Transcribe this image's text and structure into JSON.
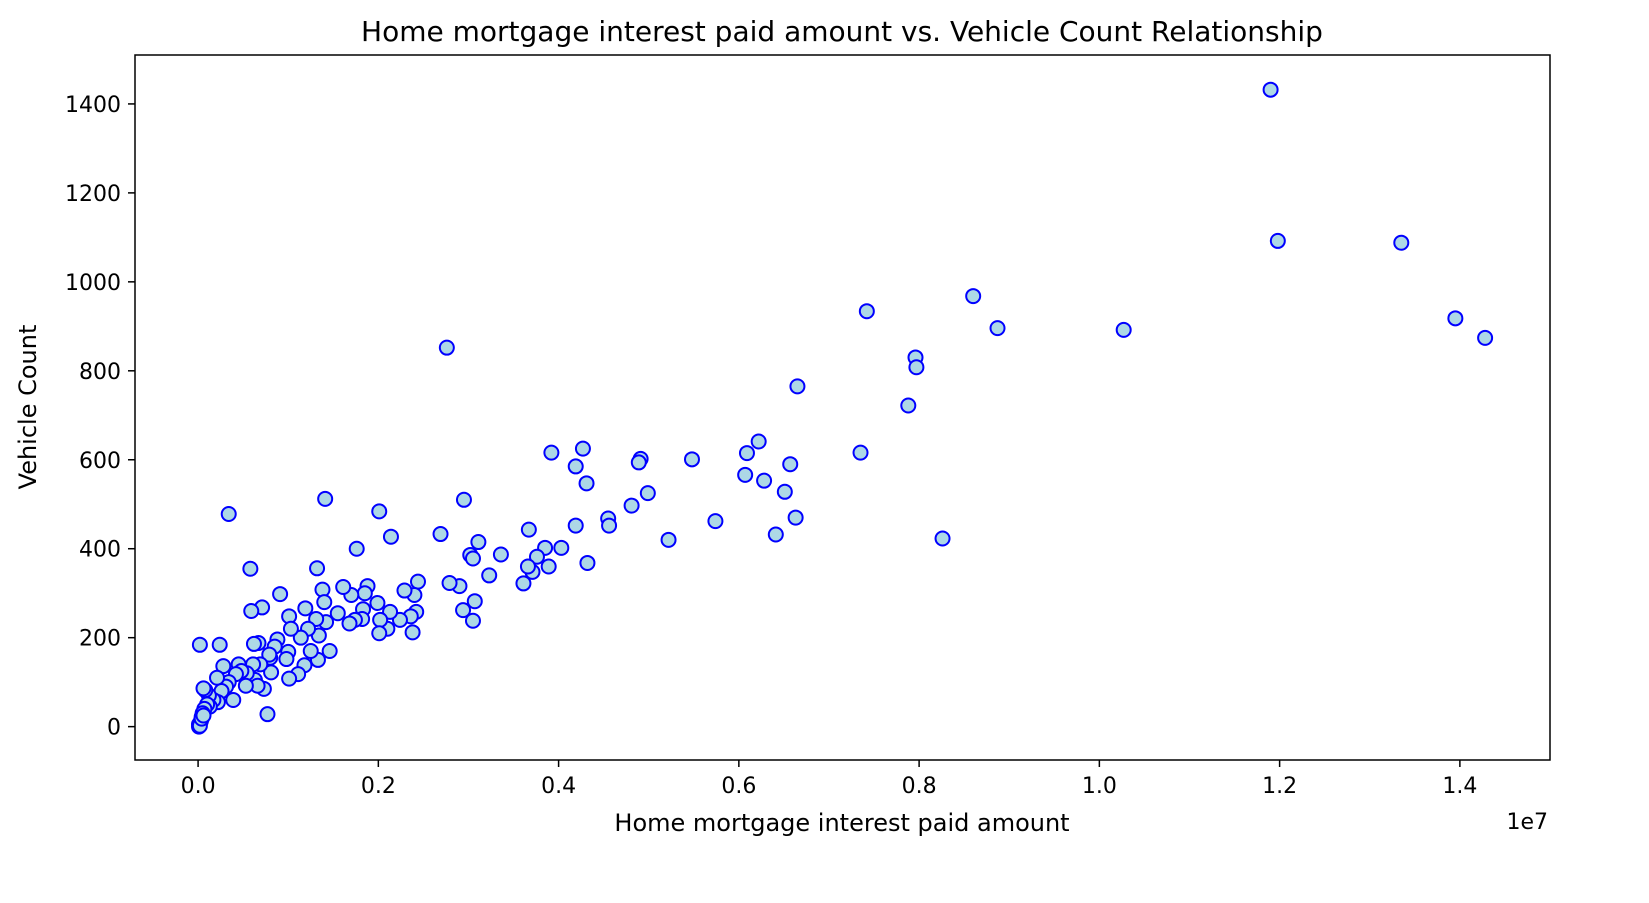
{
  "chart_data": {
    "type": "scatter",
    "title": "Home mortgage interest paid amount vs. Vehicle Count Relationship",
    "xlabel": "Home mortgage interest paid amount",
    "ylabel": "Vehicle Count",
    "x_offset_label": "1e7",
    "xlim": [
      -0.07,
      1.5
    ],
    "ylim": [
      -75,
      1510
    ],
    "x_unit_multiplier": 10000000,
    "x_ticks": [
      0.0,
      0.2,
      0.4,
      0.6,
      0.8,
      1.0,
      1.2,
      1.4
    ],
    "x_tick_labels": [
      "0.0",
      "0.2",
      "0.4",
      "0.6",
      "0.8",
      "1.0",
      "1.2",
      "1.4"
    ],
    "y_ticks": [
      0,
      200,
      400,
      600,
      800,
      1000,
      1200,
      1400
    ],
    "y_tick_labels": [
      "0",
      "200",
      "400",
      "600",
      "800",
      "1000",
      "1200",
      "1400"
    ],
    "grid": false,
    "legend": "none",
    "marker_face_color": "#add8e6",
    "marker_edge_color": "#0000ff",
    "points": [
      [
        1.19,
        1432
      ],
      [
        1.198,
        1092
      ],
      [
        1.335,
        1088
      ],
      [
        1.395,
        918
      ],
      [
        1.428,
        874
      ],
      [
        1.027,
        892
      ],
      [
        0.86,
        968
      ],
      [
        0.887,
        896
      ],
      [
        0.742,
        934
      ],
      [
        0.796,
        830
      ],
      [
        0.797,
        808
      ],
      [
        0.788,
        722
      ],
      [
        0.665,
        765
      ],
      [
        0.826,
        423
      ],
      [
        0.735,
        616
      ],
      [
        0.622,
        641
      ],
      [
        0.609,
        615
      ],
      [
        0.607,
        566
      ],
      [
        0.628,
        553
      ],
      [
        0.657,
        590
      ],
      [
        0.651,
        528
      ],
      [
        0.663,
        470
      ],
      [
        0.641,
        432
      ],
      [
        0.548,
        601
      ],
      [
        0.574,
        462
      ],
      [
        0.522,
        420
      ],
      [
        0.491,
        602
      ],
      [
        0.489,
        594
      ],
      [
        0.499,
        525
      ],
      [
        0.481,
        497
      ],
      [
        0.455,
        468
      ],
      [
        0.456,
        452
      ],
      [
        0.427,
        625
      ],
      [
        0.419,
        585
      ],
      [
        0.431,
        547
      ],
      [
        0.419,
        452
      ],
      [
        0.432,
        368
      ],
      [
        0.392,
        616
      ],
      [
        0.367,
        443
      ],
      [
        0.403,
        402
      ],
      [
        0.385,
        402
      ],
      [
        0.376,
        382
      ],
      [
        0.389,
        360
      ],
      [
        0.371,
        348
      ],
      [
        0.366,
        360
      ],
      [
        0.361,
        322
      ],
      [
        0.336,
        387
      ],
      [
        0.323,
        340
      ],
      [
        0.311,
        415
      ],
      [
        0.302,
        386
      ],
      [
        0.305,
        378
      ],
      [
        0.307,
        282
      ],
      [
        0.305,
        238
      ],
      [
        0.295,
        510
      ],
      [
        0.294,
        262
      ],
      [
        0.29,
        316
      ],
      [
        0.279,
        323
      ],
      [
        0.276,
        852
      ],
      [
        0.269,
        433
      ],
      [
        0.244,
        326
      ],
      [
        0.24,
        296
      ],
      [
        0.242,
        258
      ],
      [
        0.236,
        248
      ],
      [
        0.229,
        306
      ],
      [
        0.238,
        212
      ],
      [
        0.224,
        240
      ],
      [
        0.214,
        427
      ],
      [
        0.213,
        258
      ],
      [
        0.21,
        220
      ],
      [
        0.201,
        484
      ],
      [
        0.202,
        240
      ],
      [
        0.199,
        278
      ],
      [
        0.201,
        210
      ],
      [
        0.188,
        316
      ],
      [
        0.185,
        300
      ],
      [
        0.183,
        264
      ],
      [
        0.182,
        242
      ],
      [
        0.176,
        400
      ],
      [
        0.17,
        296
      ],
      [
        0.174,
        240
      ],
      [
        0.168,
        232
      ],
      [
        0.161,
        314
      ],
      [
        0.155,
        255
      ],
      [
        0.141,
        512
      ],
      [
        0.138,
        308
      ],
      [
        0.14,
        280
      ],
      [
        0.142,
        235
      ],
      [
        0.146,
        170
      ],
      [
        0.132,
        356
      ],
      [
        0.131,
        242
      ],
      [
        0.134,
        205
      ],
      [
        0.133,
        150
      ],
      [
        0.125,
        170
      ],
      [
        0.119,
        266
      ],
      [
        0.122,
        220
      ],
      [
        0.114,
        200
      ],
      [
        0.118,
        138
      ],
      [
        0.111,
        118
      ],
      [
        0.101,
        248
      ],
      [
        0.103,
        220
      ],
      [
        0.1,
        168
      ],
      [
        0.101,
        108
      ],
      [
        0.098,
        152
      ],
      [
        0.091,
        298
      ],
      [
        0.088,
        196
      ],
      [
        0.085,
        180
      ],
      [
        0.08,
        155
      ],
      [
        0.081,
        122
      ],
      [
        0.079,
        162
      ],
      [
        0.071,
        268
      ],
      [
        0.067,
        188
      ],
      [
        0.069,
        140
      ],
      [
        0.073,
        85
      ],
      [
        0.077,
        28
      ],
      [
        0.059,
        260
      ],
      [
        0.058,
        355
      ],
      [
        0.062,
        186
      ],
      [
        0.061,
        140
      ],
      [
        0.063,
        105
      ],
      [
        0.066,
        92
      ],
      [
        0.054,
        120
      ],
      [
        0.053,
        92
      ],
      [
        0.034,
        478
      ],
      [
        0.045,
        140
      ],
      [
        0.048,
        125
      ],
      [
        0.042,
        118
      ],
      [
        0.039,
        60
      ],
      [
        0.034,
        100
      ],
      [
        0.031,
        90
      ],
      [
        0.024,
        184
      ],
      [
        0.028,
        136
      ],
      [
        0.021,
        110
      ],
      [
        0.026,
        80
      ],
      [
        0.022,
        55
      ],
      [
        0.017,
        60
      ],
      [
        0.013,
        45
      ],
      [
        0.012,
        70
      ],
      [
        0.008,
        82
      ],
      [
        0.006,
        86
      ],
      [
        0.01,
        50
      ],
      [
        0.007,
        40
      ],
      [
        0.005,
        30
      ],
      [
        0.004,
        22
      ],
      [
        0.002,
        184
      ],
      [
        0.003,
        12
      ],
      [
        0.001,
        5
      ],
      [
        0.001,
        0
      ],
      [
        0.002,
        2
      ],
      [
        0.004,
        18
      ],
      [
        0.006,
        25
      ]
    ]
  }
}
